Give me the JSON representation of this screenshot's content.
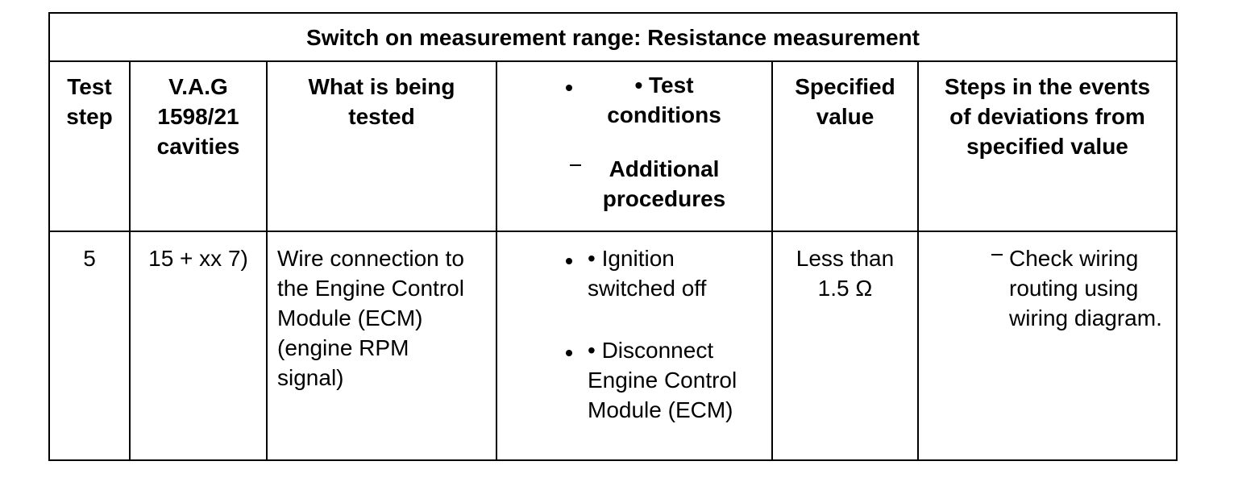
{
  "title": "Switch on measurement range: Resistance measurement",
  "columns": {
    "test_step": "Test step",
    "cavities": "V.A.G 1598/21 cavities",
    "tested": "What is being tested",
    "conditions": {
      "bullet": "• Test conditions",
      "dash": "Additional procedures"
    },
    "specified": "Specified value",
    "steps": "Steps in the events of deviations from specified value"
  },
  "rows": [
    {
      "test_step": "5",
      "cavities": "15 + xx 7)",
      "tested": "Wire connection to the Engine Control Module (ECM) (engine RPM signal)",
      "conditions": [
        "• Ignition switched off",
        "• Disconnect Engine Control Module (ECM)"
      ],
      "specified": "Less than 1.5 Ω",
      "steps": [
        "Check wiring routing using wiring diagram."
      ]
    }
  ]
}
